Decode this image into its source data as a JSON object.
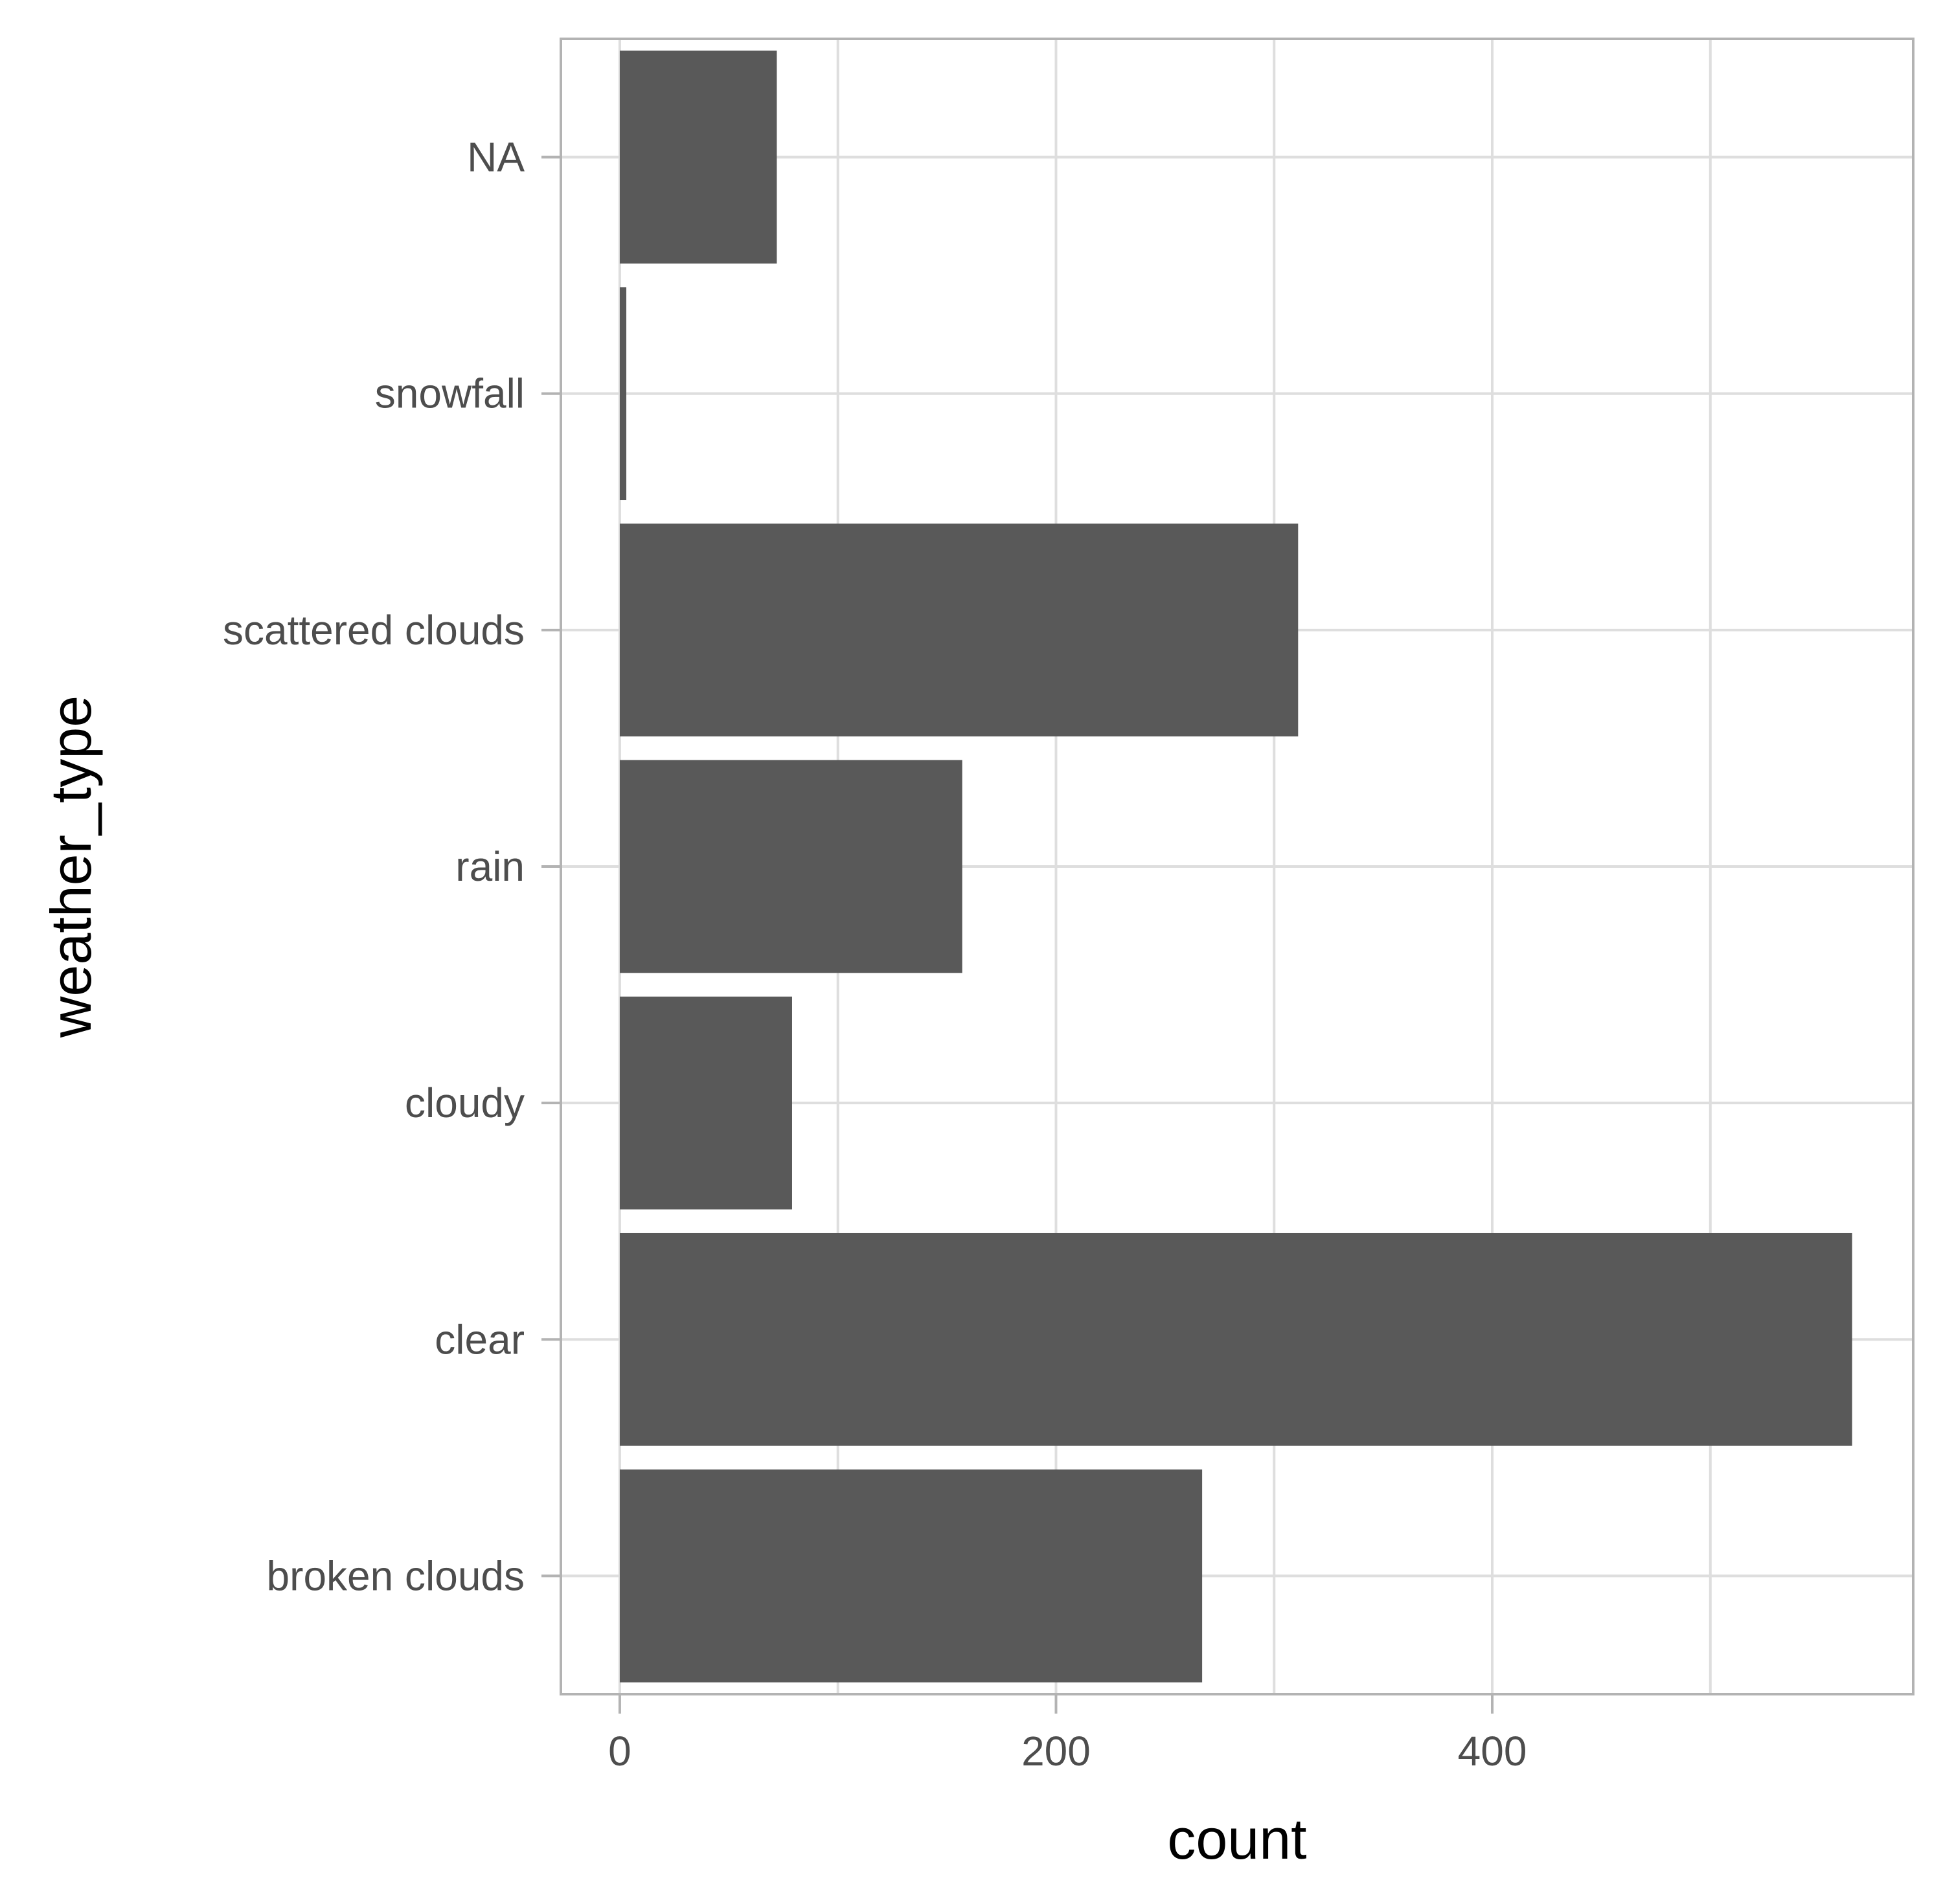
{
  "chart_data": {
    "type": "bar",
    "orientation": "horizontal",
    "categories": [
      "broken clouds",
      "clear",
      "cloudy",
      "rain",
      "scattered clouds",
      "snowfall",
      "NA"
    ],
    "values": [
      267,
      565,
      79,
      157,
      311,
      3,
      72
    ],
    "xlabel": "count",
    "ylabel": "weather_type",
    "xlim": [
      -27,
      593
    ],
    "xticks": [
      0,
      200,
      400
    ],
    "xtick_labels": [
      "0",
      "200",
      "400"
    ],
    "grid": true,
    "bar_color": "#595959",
    "grid_color": "#dedede",
    "panel_border_color": "#b3b3b3",
    "tick_color": "#b3b3b3"
  }
}
